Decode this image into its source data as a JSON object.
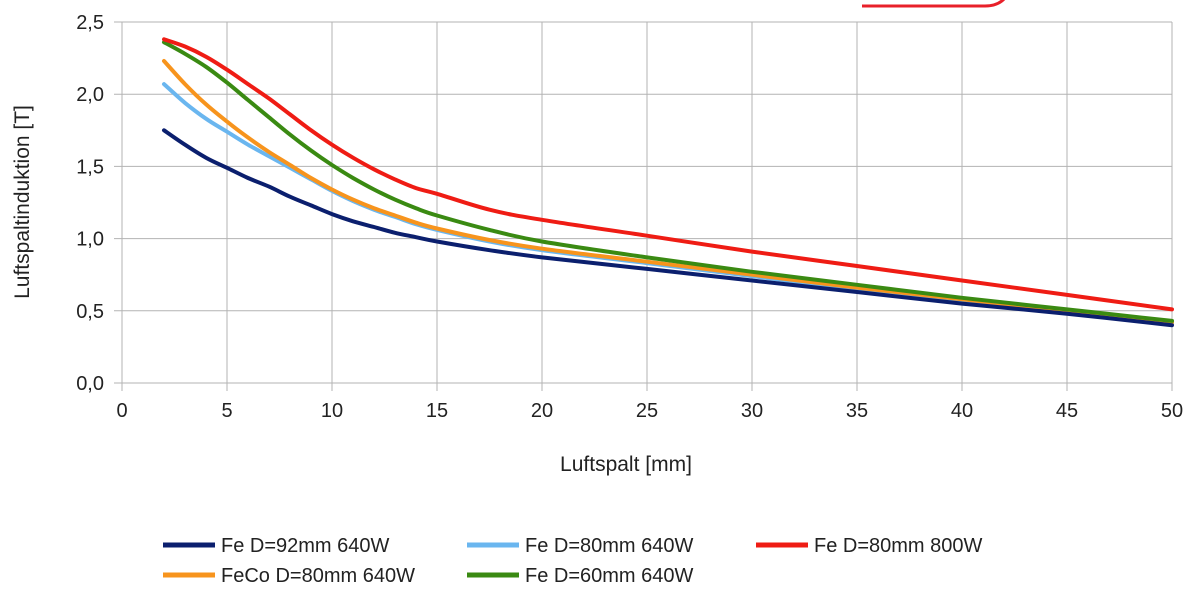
{
  "chart_data": {
    "type": "line",
    "title": "",
    "xlabel": "Luftspalt [mm]",
    "ylabel": "Luftspaltinduktion [T]",
    "xlim": [
      0,
      50
    ],
    "ylim": [
      0,
      2.5
    ],
    "xticks": [
      0,
      5,
      10,
      15,
      20,
      25,
      30,
      35,
      40,
      45,
      50
    ],
    "yticks": [
      {
        "value": 0,
        "label": "0,0"
      },
      {
        "value": 0.5,
        "label": "0,5"
      },
      {
        "value": 1,
        "label": "1,0"
      },
      {
        "value": 1.5,
        "label": "1,5"
      },
      {
        "value": 2,
        "label": "2,0"
      },
      {
        "value": 2.5,
        "label": "2,5"
      }
    ],
    "grid": true,
    "legend_position": "bottom",
    "series": [
      {
        "name": "Fe D=92mm 640W",
        "color": "#0b1f6e",
        "points": [
          [
            2,
            1.75
          ],
          [
            3,
            1.65
          ],
          [
            4,
            1.56
          ],
          [
            5,
            1.49
          ],
          [
            6,
            1.42
          ],
          [
            7,
            1.36
          ],
          [
            8,
            1.29
          ],
          [
            9,
            1.23
          ],
          [
            10,
            1.17
          ],
          [
            11,
            1.12
          ],
          [
            12,
            1.08
          ],
          [
            13,
            1.04
          ],
          [
            14,
            1.01
          ],
          [
            15,
            0.98
          ],
          [
            17.5,
            0.92
          ],
          [
            20,
            0.87
          ],
          [
            25,
            0.79
          ],
          [
            30,
            0.71
          ],
          [
            35,
            0.63
          ],
          [
            40,
            0.55
          ],
          [
            45,
            0.48
          ],
          [
            50,
            0.4
          ]
        ]
      },
      {
        "name": "Fe D=80mm 640W",
        "color": "#6ab6ef",
        "points": [
          [
            2,
            2.07
          ],
          [
            3,
            1.94
          ],
          [
            4,
            1.83
          ],
          [
            5,
            1.74
          ],
          [
            6,
            1.65
          ],
          [
            7,
            1.57
          ],
          [
            8,
            1.49
          ],
          [
            9,
            1.41
          ],
          [
            10,
            1.33
          ],
          [
            11,
            1.26
          ],
          [
            12,
            1.2
          ],
          [
            13,
            1.15
          ],
          [
            14,
            1.1
          ],
          [
            15,
            1.06
          ],
          [
            17.5,
            0.98
          ],
          [
            20,
            0.92
          ],
          [
            25,
            0.83
          ],
          [
            30,
            0.74
          ],
          [
            35,
            0.65
          ],
          [
            40,
            0.57
          ],
          [
            45,
            0.49
          ],
          [
            50,
            0.42
          ]
        ]
      },
      {
        "name": "Fe D=80mm 800W",
        "color": "#ef1c14",
        "points": [
          [
            2,
            2.38
          ],
          [
            3,
            2.33
          ],
          [
            4,
            2.26
          ],
          [
            5,
            2.17
          ],
          [
            6,
            2.07
          ],
          [
            7,
            1.97
          ],
          [
            8,
            1.86
          ],
          [
            9,
            1.75
          ],
          [
            10,
            1.65
          ],
          [
            11,
            1.56
          ],
          [
            12,
            1.48
          ],
          [
            13,
            1.41
          ],
          [
            14,
            1.35
          ],
          [
            15,
            1.31
          ],
          [
            17.5,
            1.2
          ],
          [
            20,
            1.13
          ],
          [
            25,
            1.02
          ],
          [
            30,
            0.91
          ],
          [
            35,
            0.81
          ],
          [
            40,
            0.71
          ],
          [
            45,
            0.61
          ],
          [
            50,
            0.51
          ]
        ]
      },
      {
        "name": "FeCo D=80mm 640W",
        "color": "#f7941d",
        "points": [
          [
            2,
            2.23
          ],
          [
            3,
            2.07
          ],
          [
            4,
            1.93
          ],
          [
            5,
            1.81
          ],
          [
            6,
            1.7
          ],
          [
            7,
            1.6
          ],
          [
            8,
            1.51
          ],
          [
            9,
            1.42
          ],
          [
            10,
            1.34
          ],
          [
            11,
            1.27
          ],
          [
            12,
            1.21
          ],
          [
            13,
            1.16
          ],
          [
            14,
            1.11
          ],
          [
            15,
            1.07
          ],
          [
            17.5,
            0.99
          ],
          [
            20,
            0.93
          ],
          [
            25,
            0.84
          ],
          [
            30,
            0.75
          ],
          [
            35,
            0.66
          ],
          [
            40,
            0.58
          ],
          [
            45,
            0.5
          ],
          [
            50,
            0.42
          ]
        ]
      },
      {
        "name": "Fe D=60mm 640W",
        "color": "#3a8a12",
        "points": [
          [
            2,
            2.36
          ],
          [
            3,
            2.28
          ],
          [
            4,
            2.19
          ],
          [
            5,
            2.08
          ],
          [
            6,
            1.96
          ],
          [
            7,
            1.84
          ],
          [
            8,
            1.72
          ],
          [
            9,
            1.61
          ],
          [
            10,
            1.51
          ],
          [
            11,
            1.42
          ],
          [
            12,
            1.34
          ],
          [
            13,
            1.27
          ],
          [
            14,
            1.21
          ],
          [
            15,
            1.16
          ],
          [
            17.5,
            1.06
          ],
          [
            20,
            0.98
          ],
          [
            25,
            0.87
          ],
          [
            30,
            0.77
          ],
          [
            35,
            0.68
          ],
          [
            40,
            0.59
          ],
          [
            45,
            0.51
          ],
          [
            50,
            0.43
          ]
        ]
      }
    ]
  }
}
